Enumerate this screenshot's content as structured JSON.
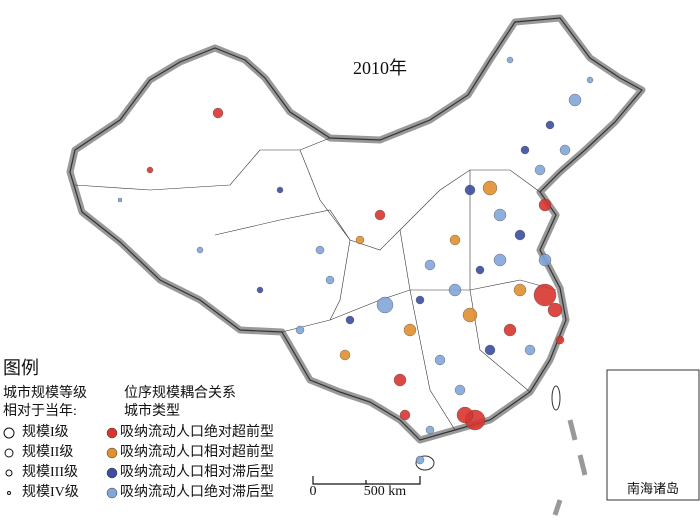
{
  "title": "2010年",
  "legend": {
    "title": "图例",
    "size": {
      "heading": [
        "城市规模等级",
        "相对于当年:"
      ],
      "items": [
        "规模I级",
        "规模II级",
        "规模III级",
        "规模IV级"
      ]
    },
    "type": {
      "heading": [
        "位序规模耦合关系",
        "城市类型"
      ],
      "items": [
        {
          "label": "吸纳流动人口绝对超前型",
          "color": "#d9352e"
        },
        {
          "label": "吸纳流动人口相对超前型",
          "color": "#e0902e"
        },
        {
          "label": "吸纳流动人口相对滞后型",
          "color": "#3b4ea0"
        },
        {
          "label": "吸纳流动人口绝对滞后型",
          "color": "#82a6da"
        }
      ]
    }
  },
  "scale_bar": {
    "zero": "0",
    "label": "500 km"
  },
  "inset": "南海诸岛"
}
